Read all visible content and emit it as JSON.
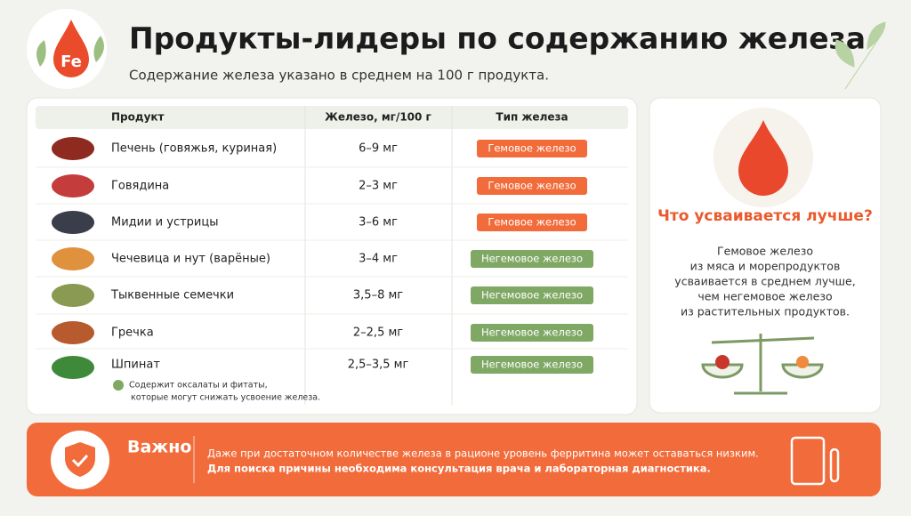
{
  "header": {
    "logo": "Fe",
    "title": "Продукты-лидеры по содержанию железа",
    "subtitle": "Содержание железа указано в среднем на 100 г продукта."
  },
  "table": {
    "columns": [
      "Продукт",
      "Железо, мг/100 г",
      "Тип железа"
    ],
    "rows": [
      {
        "product": "Печень (говяжья, куриная)",
        "iron": "6–9 мг",
        "type": "Гемовое железо",
        "kind": "heme"
      },
      {
        "product": "Говядина",
        "iron": "2–3 мг",
        "type": "Гемовое железо",
        "kind": "heme"
      },
      {
        "product": "Мидии и устрицы",
        "iron": "3–6 мг",
        "type": "Гемовое железо",
        "kind": "heme"
      },
      {
        "product": "Чечевица и нут (варёные)",
        "iron": "3–4 мг",
        "type": "Негемовое железо",
        "kind": "nonheme"
      },
      {
        "product": "Тыквенные семечки",
        "iron": "3,5–8 мг",
        "type": "Негемовое железо",
        "kind": "nonheme"
      },
      {
        "product": "Гречка",
        "iron": "2–2,5 мг",
        "type": "Негемовое железо",
        "kind": "nonheme"
      },
      {
        "product": "Шпинат",
        "iron": "2,5–3,5 мг",
        "type": "Негемовое железо",
        "kind": "nonheme",
        "note": [
          "Содержит оксалаты и фитаты,",
          "которые могут снижать усвоение железа."
        ]
      }
    ]
  },
  "side": {
    "heading": "Что усваивается лучше?",
    "lines": [
      "Гемовое железо",
      "из мяса и морепродуктов",
      "усваивается в среднем лучше,",
      "чем негемовое железо",
      "из растительных продуктов."
    ]
  },
  "important": {
    "label": "Важно",
    "lines": [
      "Даже при достаточном количестве железа в рационе уровень ферритина может оставаться низким.",
      "Для поиска причины необходима консультация врача и лабораторная диагностика."
    ]
  }
}
